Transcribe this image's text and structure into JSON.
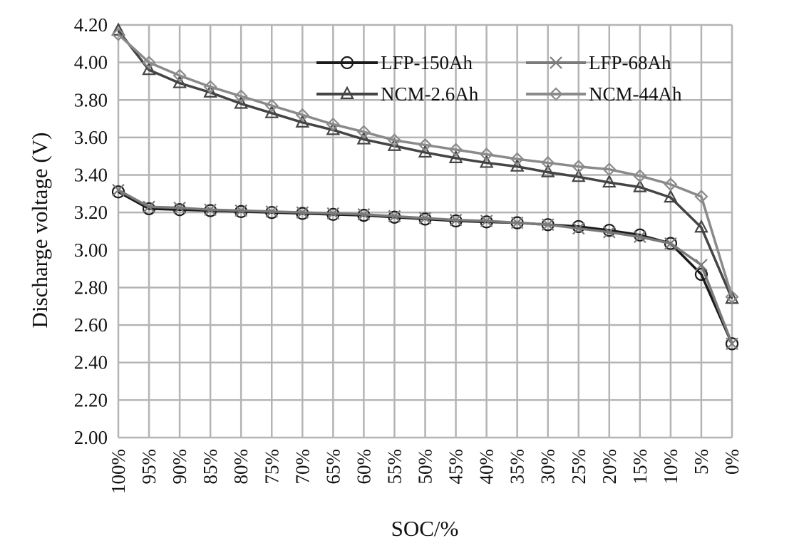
{
  "chart_data": {
    "type": "line",
    "title": "",
    "xlabel": "SOC/%",
    "ylabel": "Discharge voltage (V)",
    "ylim": [
      2.0,
      4.2
    ],
    "yticks": [
      "2.00",
      "2.20",
      "2.40",
      "2.60",
      "2.80",
      "3.00",
      "3.20",
      "3.40",
      "3.60",
      "3.80",
      "4.00",
      "4.20"
    ],
    "categories": [
      "100%",
      "95%",
      "90%",
      "85%",
      "80%",
      "75%",
      "70%",
      "65%",
      "60%",
      "55%",
      "50%",
      "45%",
      "40%",
      "35%",
      "30%",
      "25%",
      "20%",
      "15%",
      "10%",
      "5%",
      "0%"
    ],
    "grid": true,
    "legend_position": "top-right",
    "series": [
      {
        "name": "LFP-150Ah",
        "marker": "circle",
        "color": "#1a1a1a",
        "values": [
          3.31,
          3.22,
          3.215,
          3.21,
          3.205,
          3.2,
          3.195,
          3.19,
          3.185,
          3.175,
          3.165,
          3.155,
          3.15,
          3.145,
          3.135,
          3.125,
          3.105,
          3.08,
          3.035,
          2.87,
          2.5
        ]
      },
      {
        "name": "LFP-68Ah",
        "marker": "x",
        "color": "#7a7a7a",
        "values": [
          3.32,
          3.23,
          3.225,
          3.215,
          3.21,
          3.205,
          3.2,
          3.195,
          3.19,
          3.18,
          3.17,
          3.16,
          3.155,
          3.145,
          3.135,
          3.115,
          3.095,
          3.07,
          3.035,
          2.92,
          2.5
        ]
      },
      {
        "name": "NCM-2.6Ah",
        "marker": "triangle",
        "color": "#444444",
        "values": [
          4.17,
          3.96,
          3.89,
          3.84,
          3.78,
          3.73,
          3.68,
          3.64,
          3.59,
          3.555,
          3.52,
          3.49,
          3.465,
          3.445,
          3.415,
          3.39,
          3.36,
          3.335,
          3.28,
          3.12,
          2.74
        ]
      },
      {
        "name": "NCM-44Ah",
        "marker": "diamond",
        "color": "#8a8a8a",
        "values": [
          4.15,
          4.0,
          3.93,
          3.87,
          3.82,
          3.77,
          3.72,
          3.67,
          3.63,
          3.585,
          3.56,
          3.535,
          3.51,
          3.485,
          3.465,
          3.445,
          3.43,
          3.395,
          3.35,
          3.285,
          2.75
        ]
      }
    ]
  }
}
